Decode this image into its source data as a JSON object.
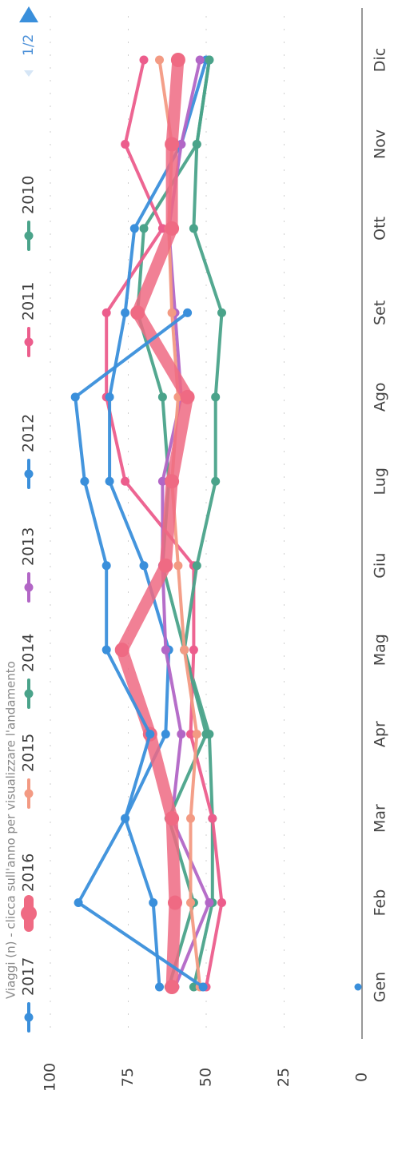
{
  "chart_data": {
    "type": "line",
    "title": "Viaggi (n) - clicca sull'anno per visualizzare l'andamento",
    "categories": [
      "Gen",
      "Feb",
      "Mar",
      "Apr",
      "Mag",
      "Giu",
      "Lug",
      "Ago",
      "Set",
      "Ott",
      "Nov",
      "Dic"
    ],
    "ylim": [
      0,
      100
    ],
    "yticks": [
      0,
      25,
      50,
      75,
      100
    ],
    "ytick_labels": [
      "0",
      "25",
      "50",
      "75",
      "100"
    ],
    "grid": "dashed",
    "legend_position": "top",
    "pager": "1/2",
    "series": [
      {
        "name": "2017",
        "color": "#3a8fdb",
        "values": [
          51,
          91,
          76,
          68,
          82,
          82,
          89,
          92,
          56,
          null,
          null,
          null
        ]
      },
      {
        "name": "2016",
        "color": "#ef6a83",
        "values": [
          61,
          60,
          61,
          68,
          77,
          63,
          61,
          56,
          72,
          61,
          61,
          59
        ]
      },
      {
        "name": "2015",
        "color": "#f39a83",
        "values": [
          52,
          55,
          55,
          53,
          57,
          59,
          61,
          59,
          61,
          62,
          61,
          65
        ]
      },
      {
        "name": "2014",
        "color": "#4aa38a",
        "values": [
          62,
          54,
          62,
          50,
          57,
          53,
          47,
          47,
          45,
          54,
          53,
          49
        ]
      },
      {
        "name": "2013",
        "color": "#b266c6",
        "values": [
          60,
          49,
          61,
          58,
          63,
          64,
          64,
          58,
          60,
          62,
          58,
          52
        ]
      },
      {
        "name": "2012",
        "color": "#3a8fdb",
        "values": [
          65,
          67,
          76,
          63,
          62,
          70,
          81,
          81,
          76,
          73,
          58,
          50
        ]
      },
      {
        "name": "2011",
        "color": "#ec5d8c",
        "values": [
          50,
          45,
          48,
          55,
          54,
          54,
          76,
          82,
          82,
          64,
          76,
          70
        ]
      },
      {
        "name": "2010",
        "color": "#4aa38a",
        "values": [
          54,
          48,
          48,
          49,
          57,
          64,
          62,
          64,
          72,
          70,
          53,
          49
        ]
      }
    ],
    "legend": [
      "2017",
      "2016",
      "2015",
      "2014",
      "2013",
      "2012",
      "2011",
      "2010"
    ]
  }
}
